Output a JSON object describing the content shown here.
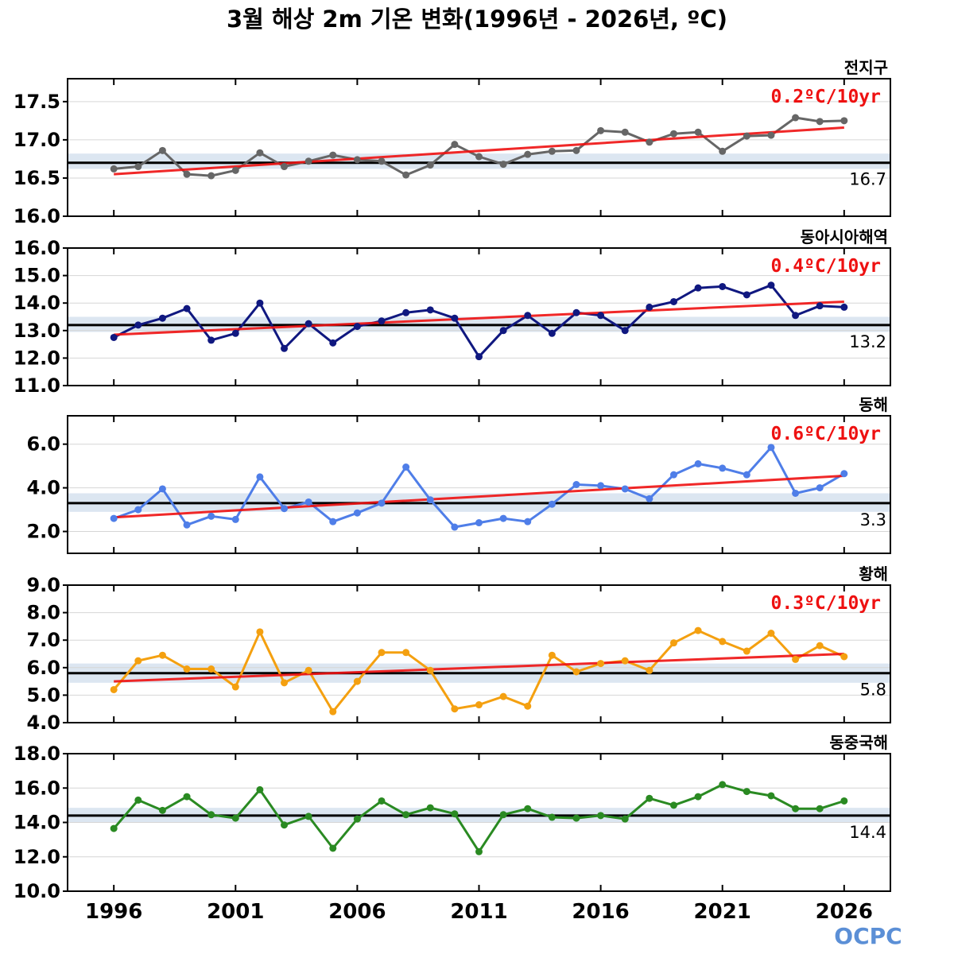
{
  "title": "3월 해상 2m 기온 변화(1996년 - 2026년, ºC)",
  "logo": "OCPC",
  "chart_data": {
    "type": "line",
    "x": [
      1996,
      1997,
      1998,
      1999,
      2000,
      2001,
      2002,
      2003,
      2004,
      2005,
      2006,
      2007,
      2008,
      2009,
      2010,
      2011,
      2012,
      2013,
      2014,
      2015,
      2016,
      2017,
      2018,
      2019,
      2020,
      2021,
      2022,
      2023,
      2024,
      2025,
      2026
    ],
    "x_ticks": [
      "1996",
      "2001",
      "2006",
      "2011",
      "2016",
      "2021",
      "2026"
    ],
    "x_range": [
      1994.1,
      2027.9
    ],
    "panels": [
      {
        "region": "전지구",
        "trend_label": "0.2ºC/10yr",
        "climatology": 16.7,
        "climatology_label": "16.7",
        "ylim": [
          16.0,
          17.8
        ],
        "yticks": [
          "16.0",
          "16.5",
          "17.0",
          "17.5"
        ],
        "band": [
          16.62,
          16.82
        ],
        "color": "#666666",
        "trend_color": "#ee1111",
        "trend_line": [
          16.55,
          17.16
        ],
        "values": [
          16.62,
          16.65,
          16.86,
          16.55,
          16.53,
          16.6,
          16.83,
          16.65,
          16.72,
          16.8,
          16.74,
          16.72,
          16.54,
          16.67,
          16.94,
          16.78,
          16.68,
          16.81,
          16.85,
          16.86,
          17.12,
          17.1,
          16.97,
          17.08,
          17.1,
          16.85,
          17.05,
          17.06,
          17.29,
          17.24,
          17.25
        ]
      },
      {
        "region": "동아시아해역",
        "trend_label": "0.4ºC/10yr",
        "climatology": 13.2,
        "climatology_label": "13.2",
        "ylim": [
          11.0,
          16.0
        ],
        "yticks": [
          "11.0",
          "12.0",
          "13.0",
          "14.0",
          "15.0",
          "16.0"
        ],
        "band": [
          12.95,
          13.5
        ],
        "color": "#101880",
        "trend_color": "#ee1111",
        "trend_line": [
          12.85,
          14.05
        ],
        "values": [
          12.75,
          13.2,
          13.45,
          13.8,
          12.65,
          12.9,
          14.0,
          12.35,
          13.25,
          12.55,
          13.15,
          13.35,
          13.65,
          13.75,
          13.45,
          12.05,
          13.0,
          13.55,
          12.9,
          13.65,
          13.55,
          13.0,
          13.85,
          14.05,
          14.55,
          14.6,
          14.3,
          14.65,
          13.55,
          13.9,
          13.85
        ]
      },
      {
        "region": "동해",
        "trend_label": "0.6ºC/10yr",
        "climatology": 3.3,
        "climatology_label": "3.3",
        "ylim": [
          1.0,
          7.3
        ],
        "yticks": [
          "2.0",
          "4.0",
          "6.0"
        ],
        "band": [
          2.9,
          3.75
        ],
        "color": "#4f7ee8",
        "trend_color": "#ee1111",
        "trend_line": [
          2.65,
          4.55
        ],
        "values": [
          2.6,
          3.0,
          3.95,
          2.3,
          2.7,
          2.55,
          4.5,
          3.05,
          3.35,
          2.45,
          2.85,
          3.3,
          4.95,
          3.45,
          2.2,
          2.4,
          2.6,
          2.45,
          3.25,
          4.15,
          4.1,
          3.95,
          3.5,
          4.6,
          5.1,
          4.9,
          4.6,
          5.85,
          3.75,
          4.0,
          4.65
        ]
      },
      {
        "region": "황해",
        "trend_label": "0.3ºC/10yr",
        "climatology": 5.8,
        "climatology_label": "5.8",
        "ylim": [
          4.0,
          9.0
        ],
        "yticks": [
          "4.0",
          "5.0",
          "6.0",
          "7.0",
          "8.0",
          "9.0"
        ],
        "band": [
          5.45,
          6.15
        ],
        "color": "#f4a010",
        "trend_color": "#ee1111",
        "trend_line": [
          5.5,
          6.5
        ],
        "values": [
          5.2,
          6.25,
          6.45,
          5.95,
          5.95,
          5.3,
          7.3,
          5.45,
          5.9,
          4.4,
          5.5,
          6.55,
          6.55,
          5.9,
          4.5,
          4.65,
          4.95,
          4.6,
          6.45,
          5.85,
          6.15,
          6.25,
          5.9,
          6.9,
          7.35,
          6.95,
          6.6,
          7.25,
          6.3,
          6.8,
          6.4
        ]
      },
      {
        "region": "동중국해",
        "trend_label": "",
        "climatology": 14.4,
        "climatology_label": "14.4",
        "ylim": [
          10.0,
          18.0
        ],
        "yticks": [
          "10.0",
          "12.0",
          "14.0",
          "16.0",
          "18.0"
        ],
        "band": [
          14.0,
          14.85
        ],
        "color": "#2a8a22",
        "trend_color": "",
        "trend_line": null,
        "values": [
          13.65,
          15.3,
          14.7,
          15.5,
          14.45,
          14.25,
          15.9,
          13.85,
          14.35,
          12.5,
          14.2,
          15.25,
          14.45,
          14.85,
          14.5,
          12.3,
          14.45,
          14.8,
          14.3,
          14.25,
          14.4,
          14.2,
          15.4,
          15.0,
          15.5,
          16.2,
          15.8,
          15.55,
          14.8,
          14.8,
          15.25
        ]
      }
    ]
  }
}
